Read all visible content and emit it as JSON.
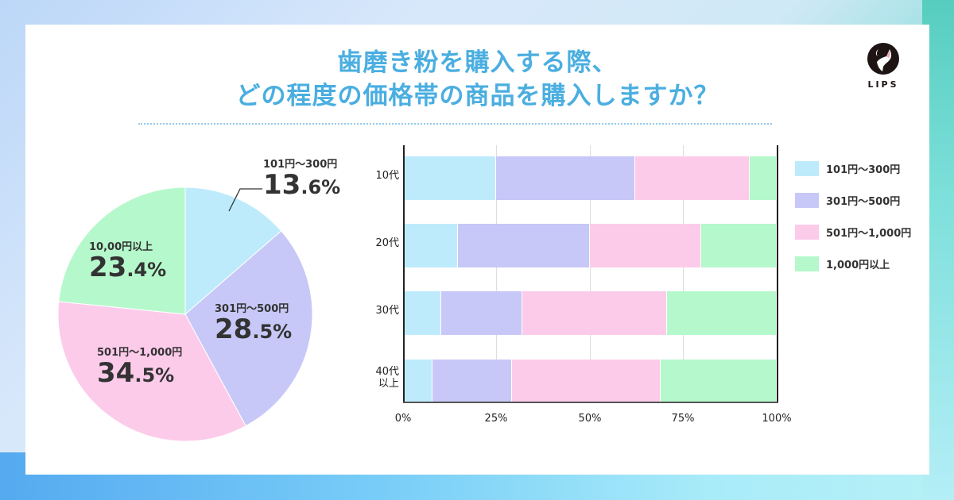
{
  "header": {
    "title_line1": "歯磨き粉を購入する際、",
    "title_line2": "どの程度の価格帯の商品を購入しますか？",
    "logo_text": "LIPS"
  },
  "colors": {
    "title": "#4aaee0",
    "s1": "#bdebfc",
    "s2": "#c7c8f7",
    "s3": "#fdcbea",
    "s4": "#b5f8cc"
  },
  "pie": {
    "labels": [
      {
        "cat": "101円〜300円",
        "int": "13",
        "dec": ".6%"
      },
      {
        "cat": "301円〜500円",
        "int": "28",
        "dec": ".5%"
      },
      {
        "cat": "501円〜1,000円",
        "int": "34",
        "dec": ".5%"
      },
      {
        "cat": "10,00円以上",
        "int": "23",
        "dec": ".4%"
      }
    ]
  },
  "bar": {
    "categories": [
      {
        "line1": "10代",
        "line2": ""
      },
      {
        "line1": "20代",
        "line2": ""
      },
      {
        "line1": "30代",
        "line2": ""
      },
      {
        "line1": "40代",
        "line2": "以上"
      }
    ],
    "ticks": [
      "0%",
      "25%",
      "50%",
      "75%",
      "100%"
    ],
    "legend": [
      "101円〜300円",
      "301円〜500円",
      "501円〜1,000円",
      "1,000円以上"
    ]
  },
  "chart_data": [
    {
      "type": "pie",
      "title": "歯磨き粉を購入する際、どの程度の価格帯の商品を購入しますか？",
      "categories": [
        "101円〜300円",
        "301円〜500円",
        "501円〜1,000円",
        "10,00円以上"
      ],
      "values": [
        13.6,
        28.5,
        34.5,
        23.4
      ],
      "colors": [
        "#bdebfc",
        "#c7c8f7",
        "#fdcbea",
        "#b5f8cc"
      ],
      "start_angle": "12 o'clock, clockwise"
    },
    {
      "type": "bar",
      "orientation": "horizontal",
      "stacked": "100%",
      "categories": [
        "10代",
        "20代",
        "30代",
        "40代以上"
      ],
      "series": [
        {
          "name": "101円〜300円",
          "values": [
            24.7,
            14.5,
            10.0,
            7.7
          ]
        },
        {
          "name": "301円〜500円",
          "values": [
            37.4,
            35.5,
            21.7,
            21.4
          ]
        },
        {
          "name": "501円〜1,000円",
          "values": [
            30.7,
            29.8,
            38.9,
            39.8
          ]
        },
        {
          "name": "1,000円以上",
          "values": [
            7.2,
            20.2,
            29.4,
            31.1
          ]
        }
      ],
      "xlim": [
        0,
        100
      ],
      "xticks": [
        "0%",
        "25%",
        "50%",
        "75%",
        "100%"
      ],
      "grid": true,
      "legend_position": "right"
    }
  ]
}
